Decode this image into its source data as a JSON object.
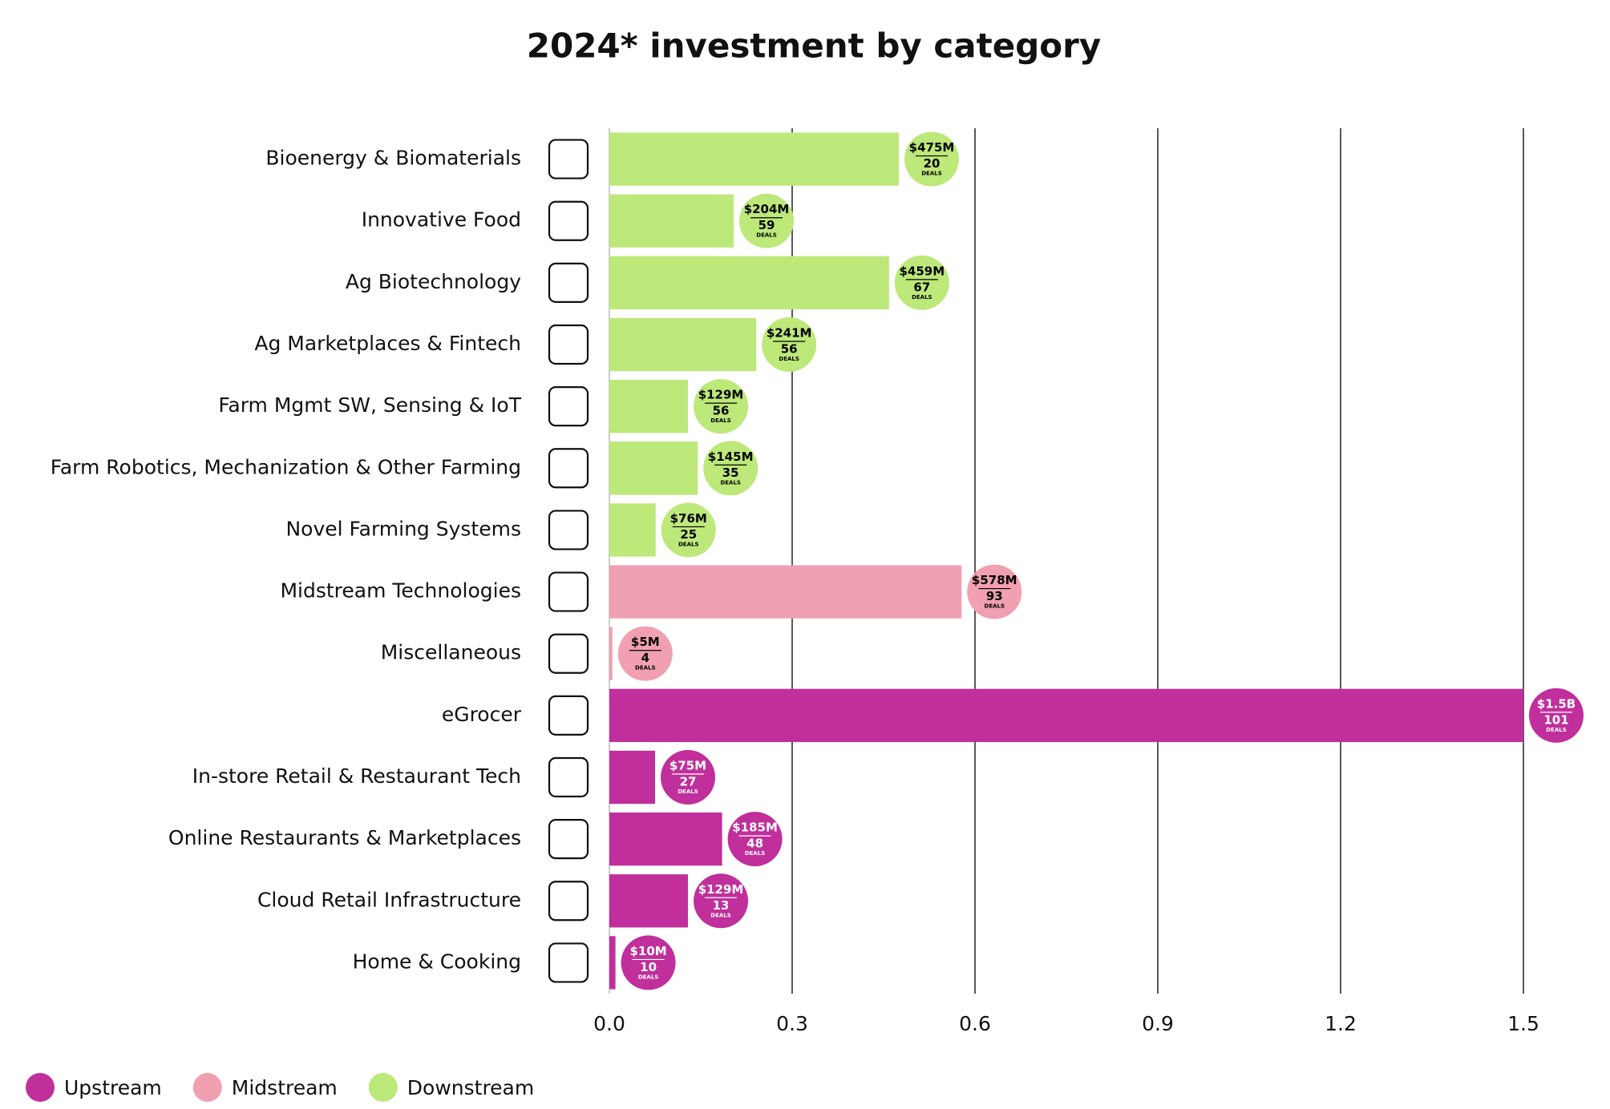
{
  "chart_data": {
    "type": "bar",
    "orientation": "horizontal",
    "title": "2024* investment by category",
    "categories": [
      "Bioenergy & Biomaterials",
      "Innovative Food",
      "Ag Biotechnology",
      "Ag Marketplaces & Fintech",
      "Farm Mgmt SW, Sensing & IoT",
      "Farm Robotics, Mechanization & Other Farming",
      "Novel Farming Systems",
      "Midstream Technologies",
      "Miscellaneous",
      "eGrocer",
      "In-store Retail & Restaurant Tech",
      "Online Restaurants & Marketplaces",
      "Cloud Retail Infrastructure",
      "Home & Cooking"
    ],
    "series": [
      {
        "name": "Upstream",
        "color": "#c02f9b",
        "label_color": "#ffffff",
        "values": [
          null,
          null,
          null,
          null,
          null,
          null,
          null,
          null,
          null,
          1.5,
          0.075,
          0.185,
          0.129,
          0.01
        ],
        "value_labels": [
          null,
          null,
          null,
          null,
          null,
          null,
          null,
          null,
          null,
          "$1.5B",
          "$75M",
          "$185M",
          "$129M",
          "$10M"
        ],
        "deals": [
          null,
          null,
          null,
          null,
          null,
          null,
          null,
          null,
          null,
          101,
          27,
          48,
          13,
          10
        ]
      },
      {
        "name": "Midstream",
        "color": "#f0a0b0",
        "label_color": "#000000",
        "values": [
          null,
          null,
          null,
          null,
          null,
          null,
          null,
          0.578,
          0.005,
          null,
          null,
          null,
          null,
          null
        ],
        "value_labels": [
          null,
          null,
          null,
          null,
          null,
          null,
          null,
          "$578M",
          "$5M",
          null,
          null,
          null,
          null,
          null
        ],
        "deals": [
          null,
          null,
          null,
          null,
          null,
          null,
          null,
          93,
          4,
          null,
          null,
          null,
          null,
          null
        ]
      },
      {
        "name": "Downstream",
        "color": "#bde87a",
        "label_color": "#000000",
        "values": [
          0.475,
          0.204,
          0.459,
          0.241,
          0.129,
          0.145,
          0.076,
          null,
          null,
          null,
          null,
          null,
          null,
          null
        ],
        "value_labels": [
          "$475M",
          "$204M",
          "$459M",
          "$241M",
          "$129M",
          "$145M",
          "$76M",
          null,
          null,
          null,
          null,
          null,
          null,
          null
        ],
        "deals": [
          20,
          59,
          67,
          56,
          56,
          35,
          25,
          null,
          null,
          null,
          null,
          null,
          null,
          null
        ]
      }
    ],
    "deals_label": "DEALS",
    "xlim": [
      0,
      1.5
    ],
    "xticks": [
      {
        "value": 0,
        "label": "0.0"
      },
      0.3,
      0.6,
      0.9,
      1.2,
      1.5
    ],
    "grid": true,
    "legend": "bottom-left"
  }
}
